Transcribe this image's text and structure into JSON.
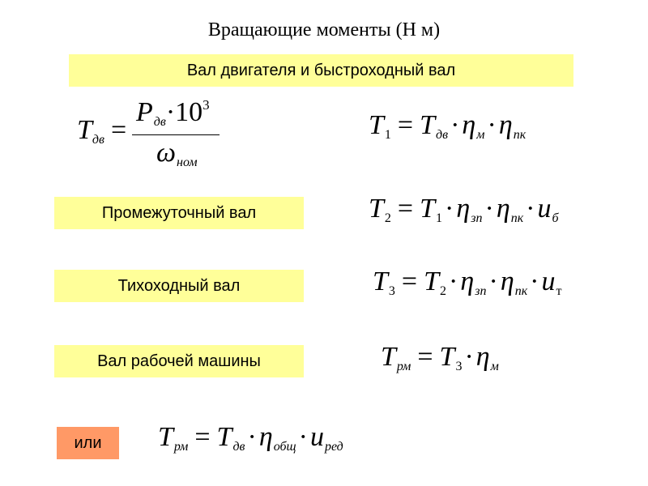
{
  "title": "Вращающие моменты (Н м)",
  "labels": {
    "fast": "Вал двигателя и быстроходный вал",
    "mid": "Промежуточный вал",
    "slow": "Тихоходный вал",
    "work": "Вал рабочей машины",
    "or": "или"
  },
  "colors": {
    "label_bg": "#ffff99",
    "or_bg": "#ff9966"
  },
  "formulas": {
    "tdv": {
      "lhs": "T",
      "lhs_sub": "дв",
      "num": "P",
      "num_sub": "дв",
      "num_tail": "·10",
      "num_sup": "3",
      "den": "ω",
      "den_sub": "ном"
    },
    "t1": [
      [
        "T",
        "1"
      ],
      [
        "="
      ],
      [
        "T",
        "дв"
      ],
      [
        "·"
      ],
      [
        "η",
        "м"
      ],
      [
        "·"
      ],
      [
        "η",
        "пк"
      ]
    ],
    "t2": [
      [
        "T",
        "2"
      ],
      [
        "="
      ],
      [
        "T",
        "1"
      ],
      [
        "·"
      ],
      [
        "η",
        "зп"
      ],
      [
        "·"
      ],
      [
        "η",
        "пк"
      ],
      [
        "·"
      ],
      [
        "u",
        "б"
      ]
    ],
    "t3": [
      [
        "T",
        "3"
      ],
      [
        "="
      ],
      [
        "T",
        "2"
      ],
      [
        "·"
      ],
      [
        "η",
        "зп"
      ],
      [
        "·"
      ],
      [
        "η",
        "пк"
      ],
      [
        "·"
      ],
      [
        "u",
        "т"
      ]
    ],
    "trm": [
      [
        "T",
        "рм"
      ],
      [
        "="
      ],
      [
        "T",
        "3"
      ],
      [
        "·"
      ],
      [
        "η",
        "м"
      ]
    ],
    "trm2": [
      [
        "T",
        "рм"
      ],
      [
        "="
      ],
      [
        "T",
        "дв"
      ],
      [
        "·"
      ],
      [
        "η",
        "общ"
      ],
      [
        "·"
      ],
      [
        "u",
        "ред"
      ]
    ]
  }
}
